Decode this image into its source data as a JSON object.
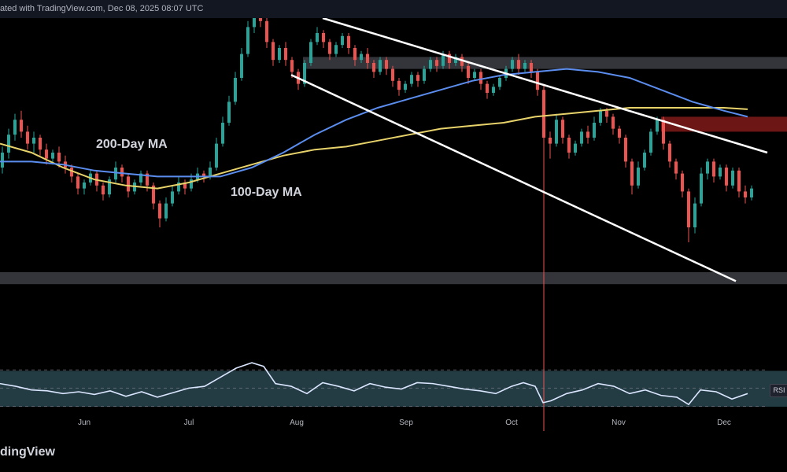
{
  "header": {
    "text": "ated with TradingView.com, Dec 08, 2025 08:07 UTC"
  },
  "brand": {
    "text": "dingView"
  },
  "annotations": {
    "ma200": "200-Day MA",
    "ma100": "100-Day MA"
  },
  "rsi_tag": "RSI",
  "colors": {
    "up": "#26a69a",
    "down": "#ef5350",
    "ma200": "#e8d36b",
    "ma100": "#5b8def",
    "channel": "#ffffff",
    "zone_gray": "#5d606b",
    "zone_red": "#c62828",
    "zone_teal": "#2f4f5a",
    "rsi": "#dbe6ff",
    "grid": "#1e222d"
  },
  "chart_data": {
    "type": "candlestick",
    "months": [
      "Jun",
      "Jul",
      "Aug",
      "Sep",
      "Oct",
      "Nov",
      "Dec"
    ],
    "price_panel": {
      "series": [
        {
          "name": "200-Day MA",
          "points": [
            [
              0,
              0.58
            ],
            [
              40,
              0.55
            ],
            [
              80,
              0.5
            ],
            [
              120,
              0.46
            ],
            [
              160,
              0.44
            ],
            [
              200,
              0.43
            ],
            [
              240,
              0.45
            ],
            [
              280,
              0.48
            ],
            [
              320,
              0.51
            ],
            [
              360,
              0.54
            ],
            [
              400,
              0.56
            ],
            [
              440,
              0.57
            ],
            [
              480,
              0.59
            ],
            [
              520,
              0.61
            ],
            [
              560,
              0.63
            ],
            [
              600,
              0.64
            ],
            [
              640,
              0.65
            ],
            [
              680,
              0.67
            ],
            [
              720,
              0.68
            ],
            [
              760,
              0.69
            ],
            [
              800,
              0.7
            ],
            [
              840,
              0.7
            ],
            [
              880,
              0.7
            ],
            [
              920,
              0.7
            ],
            [
              950,
              0.695
            ]
          ]
        },
        {
          "name": "100-Day MA",
          "points": [
            [
              0,
              0.52
            ],
            [
              40,
              0.52
            ],
            [
              80,
              0.51
            ],
            [
              120,
              0.49
            ],
            [
              160,
              0.48
            ],
            [
              200,
              0.47
            ],
            [
              240,
              0.47
            ],
            [
              280,
              0.47
            ],
            [
              320,
              0.5
            ],
            [
              360,
              0.55
            ],
            [
              400,
              0.61
            ],
            [
              440,
              0.66
            ],
            [
              480,
              0.7
            ],
            [
              520,
              0.73
            ],
            [
              560,
              0.76
            ],
            [
              600,
              0.79
            ],
            [
              640,
              0.81
            ],
            [
              680,
              0.82
            ],
            [
              720,
              0.83
            ],
            [
              760,
              0.82
            ],
            [
              800,
              0.8
            ],
            [
              840,
              0.76
            ],
            [
              880,
              0.72
            ],
            [
              920,
              0.69
            ],
            [
              950,
              0.67
            ]
          ]
        }
      ],
      "channel": [
        [
          [
            410,
            1.0
          ],
          [
            975,
            0.55
          ]
        ],
        [
          [
            370,
            0.81
          ],
          [
            935,
            0.12
          ]
        ]
      ],
      "zones": [
        {
          "kind": "gray",
          "x": [
            385,
            1000
          ],
          "y": [
            0.83,
            0.87
          ]
        },
        {
          "kind": "red",
          "x": [
            840,
            1000
          ],
          "y": [
            0.62,
            0.67
          ]
        },
        {
          "kind": "gray",
          "x": [
            0,
            1000
          ],
          "y": [
            0.11,
            0.15
          ]
        },
        {
          "kind": "teal",
          "x": [
            0,
            1000
          ],
          "y": [
            -0.3,
            -0.18
          ]
        }
      ],
      "candles": [
        [
          0,
          0.5,
          0.55,
          0.57,
          0.48
        ],
        [
          8,
          0.55,
          0.61,
          0.63,
          0.53
        ],
        [
          16,
          0.61,
          0.66,
          0.68,
          0.59
        ],
        [
          24,
          0.66,
          0.62,
          0.69,
          0.6
        ],
        [
          32,
          0.62,
          0.58,
          0.64,
          0.56
        ],
        [
          40,
          0.58,
          0.6,
          0.62,
          0.55
        ],
        [
          48,
          0.6,
          0.56,
          0.61,
          0.54
        ],
        [
          56,
          0.56,
          0.53,
          0.58,
          0.51
        ],
        [
          64,
          0.53,
          0.55,
          0.56,
          0.51
        ],
        [
          72,
          0.55,
          0.52,
          0.57,
          0.5
        ],
        [
          80,
          0.52,
          0.5,
          0.54,
          0.48
        ],
        [
          88,
          0.5,
          0.47,
          0.51,
          0.45
        ],
        [
          96,
          0.47,
          0.43,
          0.48,
          0.41
        ],
        [
          104,
          0.43,
          0.45,
          0.46,
          0.41
        ],
        [
          112,
          0.45,
          0.48,
          0.49,
          0.44
        ],
        [
          120,
          0.48,
          0.44,
          0.49,
          0.42
        ],
        [
          128,
          0.44,
          0.41,
          0.45,
          0.39
        ],
        [
          136,
          0.41,
          0.46,
          0.47,
          0.4
        ],
        [
          144,
          0.46,
          0.5,
          0.52,
          0.45
        ],
        [
          152,
          0.5,
          0.47,
          0.51,
          0.45
        ],
        [
          160,
          0.47,
          0.42,
          0.48,
          0.4
        ],
        [
          168,
          0.42,
          0.45,
          0.46,
          0.41
        ],
        [
          176,
          0.45,
          0.48,
          0.49,
          0.44
        ],
        [
          184,
          0.48,
          0.44,
          0.49,
          0.42
        ],
        [
          192,
          0.44,
          0.38,
          0.45,
          0.36
        ],
        [
          200,
          0.38,
          0.33,
          0.39,
          0.3
        ],
        [
          208,
          0.33,
          0.38,
          0.4,
          0.32
        ],
        [
          216,
          0.38,
          0.42,
          0.44,
          0.37
        ],
        [
          224,
          0.42,
          0.45,
          0.47,
          0.41
        ],
        [
          232,
          0.45,
          0.43,
          0.46,
          0.41
        ],
        [
          240,
          0.43,
          0.46,
          0.48,
          0.42
        ],
        [
          248,
          0.46,
          0.48,
          0.5,
          0.45
        ],
        [
          256,
          0.48,
          0.47,
          0.49,
          0.45
        ],
        [
          264,
          0.47,
          0.5,
          0.52,
          0.46
        ],
        [
          272,
          0.5,
          0.58,
          0.6,
          0.49
        ],
        [
          280,
          0.58,
          0.65,
          0.67,
          0.57
        ],
        [
          288,
          0.65,
          0.72,
          0.74,
          0.64
        ],
        [
          296,
          0.72,
          0.8,
          0.82,
          0.71
        ],
        [
          304,
          0.8,
          0.88,
          0.9,
          0.79
        ],
        [
          312,
          0.88,
          0.97,
          0.99,
          0.87
        ],
        [
          320,
          0.97,
          1.02,
          1.05,
          0.95
        ],
        [
          328,
          1.02,
          0.99,
          1.04,
          0.97
        ],
        [
          336,
          0.99,
          0.92,
          1.0,
          0.9
        ],
        [
          344,
          0.92,
          0.86,
          0.93,
          0.84
        ],
        [
          352,
          0.86,
          0.9,
          0.91,
          0.85
        ],
        [
          360,
          0.9,
          0.86,
          0.92,
          0.84
        ],
        [
          368,
          0.86,
          0.82,
          0.87,
          0.8
        ],
        [
          376,
          0.82,
          0.78,
          0.83,
          0.76
        ],
        [
          384,
          0.78,
          0.85,
          0.86,
          0.77
        ],
        [
          392,
          0.85,
          0.92,
          0.93,
          0.84
        ],
        [
          400,
          0.92,
          0.95,
          0.97,
          0.91
        ],
        [
          408,
          0.95,
          0.92,
          0.96,
          0.9
        ],
        [
          416,
          0.92,
          0.88,
          0.93,
          0.86
        ],
        [
          424,
          0.88,
          0.91,
          0.92,
          0.87
        ],
        [
          432,
          0.91,
          0.94,
          0.95,
          0.9
        ],
        [
          440,
          0.94,
          0.9,
          0.95,
          0.88
        ],
        [
          448,
          0.9,
          0.86,
          0.91,
          0.84
        ],
        [
          456,
          0.86,
          0.88,
          0.89,
          0.85
        ],
        [
          464,
          0.88,
          0.85,
          0.9,
          0.83
        ],
        [
          472,
          0.85,
          0.82,
          0.86,
          0.8
        ],
        [
          480,
          0.82,
          0.86,
          0.87,
          0.81
        ],
        [
          488,
          0.86,
          0.83,
          0.87,
          0.81
        ],
        [
          496,
          0.83,
          0.79,
          0.84,
          0.77
        ],
        [
          504,
          0.79,
          0.76,
          0.8,
          0.74
        ],
        [
          512,
          0.76,
          0.78,
          0.79,
          0.75
        ],
        [
          520,
          0.78,
          0.81,
          0.82,
          0.77
        ],
        [
          528,
          0.81,
          0.79,
          0.82,
          0.77
        ],
        [
          536,
          0.79,
          0.83,
          0.84,
          0.78
        ],
        [
          544,
          0.83,
          0.86,
          0.87,
          0.82
        ],
        [
          552,
          0.86,
          0.84,
          0.87,
          0.82
        ],
        [
          560,
          0.84,
          0.88,
          0.89,
          0.83
        ],
        [
          568,
          0.88,
          0.85,
          0.89,
          0.83
        ],
        [
          576,
          0.85,
          0.87,
          0.88,
          0.84
        ],
        [
          584,
          0.87,
          0.84,
          0.88,
          0.82
        ],
        [
          592,
          0.84,
          0.8,
          0.85,
          0.78
        ],
        [
          600,
          0.8,
          0.82,
          0.83,
          0.79
        ],
        [
          608,
          0.82,
          0.78,
          0.83,
          0.76
        ],
        [
          616,
          0.78,
          0.75,
          0.79,
          0.73
        ],
        [
          624,
          0.75,
          0.77,
          0.78,
          0.74
        ],
        [
          632,
          0.77,
          0.8,
          0.81,
          0.76
        ],
        [
          640,
          0.8,
          0.83,
          0.84,
          0.79
        ],
        [
          648,
          0.83,
          0.86,
          0.87,
          0.82
        ],
        [
          656,
          0.86,
          0.83,
          0.88,
          0.81
        ],
        [
          664,
          0.83,
          0.85,
          0.86,
          0.82
        ],
        [
          672,
          0.85,
          0.82,
          0.86,
          0.8
        ],
        [
          680,
          0.82,
          0.76,
          0.83,
          0.74
        ],
        [
          688,
          0.76,
          0.6,
          0.78,
          -0.42
        ],
        [
          696,
          0.6,
          0.58,
          0.62,
          0.53
        ],
        [
          704,
          0.58,
          0.66,
          0.68,
          0.57
        ],
        [
          712,
          0.66,
          0.6,
          0.67,
          0.58
        ],
        [
          720,
          0.6,
          0.55,
          0.61,
          0.53
        ],
        [
          728,
          0.55,
          0.58,
          0.59,
          0.54
        ],
        [
          736,
          0.58,
          0.62,
          0.63,
          0.57
        ],
        [
          744,
          0.62,
          0.6,
          0.64,
          0.58
        ],
        [
          752,
          0.6,
          0.65,
          0.67,
          0.59
        ],
        [
          760,
          0.65,
          0.69,
          0.7,
          0.64
        ],
        [
          768,
          0.69,
          0.67,
          0.7,
          0.65
        ],
        [
          776,
          0.67,
          0.63,
          0.68,
          0.61
        ],
        [
          784,
          0.63,
          0.6,
          0.64,
          0.58
        ],
        [
          792,
          0.6,
          0.52,
          0.61,
          0.5
        ],
        [
          800,
          0.52,
          0.44,
          0.53,
          0.41
        ],
        [
          808,
          0.44,
          0.5,
          0.52,
          0.43
        ],
        [
          816,
          0.5,
          0.55,
          0.56,
          0.49
        ],
        [
          824,
          0.55,
          0.62,
          0.63,
          0.54
        ],
        [
          832,
          0.62,
          0.66,
          0.67,
          0.61
        ],
        [
          840,
          0.66,
          0.58,
          0.67,
          0.56
        ],
        [
          848,
          0.58,
          0.52,
          0.59,
          0.5
        ],
        [
          856,
          0.52,
          0.48,
          0.53,
          0.46
        ],
        [
          864,
          0.48,
          0.42,
          0.49,
          0.4
        ],
        [
          872,
          0.42,
          0.3,
          0.43,
          0.25
        ],
        [
          880,
          0.3,
          0.38,
          0.4,
          0.28
        ],
        [
          888,
          0.38,
          0.48,
          0.5,
          0.37
        ],
        [
          896,
          0.48,
          0.52,
          0.53,
          0.46
        ],
        [
          904,
          0.52,
          0.47,
          0.53,
          0.45
        ],
        [
          912,
          0.47,
          0.5,
          0.51,
          0.46
        ],
        [
          920,
          0.5,
          0.44,
          0.51,
          0.42
        ],
        [
          928,
          0.44,
          0.49,
          0.5,
          0.43
        ],
        [
          936,
          0.49,
          0.42,
          0.5,
          0.4
        ],
        [
          944,
          0.42,
          0.4,
          0.44,
          0.38
        ],
        [
          952,
          0.4,
          0.43,
          0.44,
          0.39
        ]
      ]
    },
    "rsi_panel": {
      "levels": [
        70,
        50,
        30
      ],
      "points": [
        [
          0,
          55
        ],
        [
          20,
          52
        ],
        [
          40,
          48
        ],
        [
          60,
          47
        ],
        [
          80,
          44
        ],
        [
          100,
          46
        ],
        [
          120,
          43
        ],
        [
          140,
          47
        ],
        [
          160,
          41
        ],
        [
          180,
          46
        ],
        [
          200,
          40
        ],
        [
          220,
          45
        ],
        [
          240,
          50
        ],
        [
          260,
          52
        ],
        [
          280,
          62
        ],
        [
          300,
          72
        ],
        [
          320,
          78
        ],
        [
          335,
          74
        ],
        [
          350,
          55
        ],
        [
          370,
          52
        ],
        [
          390,
          44
        ],
        [
          410,
          56
        ],
        [
          430,
          52
        ],
        [
          450,
          47
        ],
        [
          470,
          55
        ],
        [
          490,
          51
        ],
        [
          510,
          49
        ],
        [
          530,
          56
        ],
        [
          550,
          55
        ],
        [
          570,
          52
        ],
        [
          590,
          49
        ],
        [
          610,
          47
        ],
        [
          630,
          44
        ],
        [
          650,
          52
        ],
        [
          665,
          56
        ],
        [
          680,
          52
        ],
        [
          690,
          34
        ],
        [
          700,
          36
        ],
        [
          720,
          44
        ],
        [
          740,
          48
        ],
        [
          760,
          55
        ],
        [
          780,
          52
        ],
        [
          800,
          44
        ],
        [
          820,
          48
        ],
        [
          840,
          42
        ],
        [
          860,
          40
        ],
        [
          875,
          32
        ],
        [
          890,
          48
        ],
        [
          910,
          46
        ],
        [
          930,
          38
        ],
        [
          950,
          44
        ]
      ]
    }
  }
}
